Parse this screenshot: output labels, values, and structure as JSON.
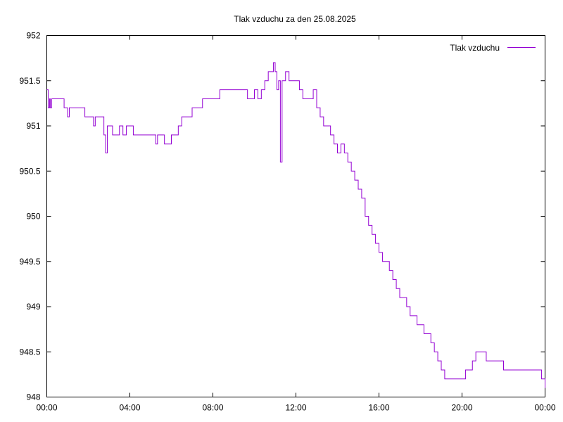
{
  "chart_data": {
    "type": "line",
    "title": "Tlak vzduchu za den 25.08.2025",
    "xlabel": "",
    "ylabel": "",
    "xlim": [
      "00:00",
      "24:00"
    ],
    "ylim": [
      948,
      952
    ],
    "x_ticks": [
      "00:00",
      "04:00",
      "08:00",
      "12:00",
      "16:00",
      "20:00",
      "00:00"
    ],
    "y_ticks": [
      "948",
      "948.5",
      "949",
      "949.5",
      "950",
      "950.5",
      "951",
      "951.5",
      "952"
    ],
    "grid": false,
    "legend_position": "top-right",
    "series": [
      {
        "name": "Tlak vzduchu",
        "color": "#9400d3",
        "x": [
          "00:00",
          "00:04",
          "00:08",
          "00:10",
          "00:14",
          "00:20",
          "00:30",
          "00:40",
          "00:50",
          "01:00",
          "01:05",
          "01:10",
          "01:15",
          "01:20",
          "01:30",
          "01:40",
          "01:50",
          "02:00",
          "02:10",
          "02:15",
          "02:20",
          "02:30",
          "02:40",
          "02:45",
          "02:50",
          "02:55",
          "03:00",
          "03:10",
          "03:20",
          "03:30",
          "03:40",
          "03:50",
          "04:00",
          "04:10",
          "04:20",
          "04:30",
          "04:45",
          "05:00",
          "05:15",
          "05:20",
          "05:30",
          "05:40",
          "05:50",
          "06:00",
          "06:10",
          "06:20",
          "06:30",
          "06:40",
          "06:50",
          "07:00",
          "07:10",
          "07:20",
          "07:30",
          "07:40",
          "07:50",
          "08:00",
          "08:20",
          "08:40",
          "09:00",
          "09:20",
          "09:40",
          "10:00",
          "10:10",
          "10:20",
          "10:30",
          "10:35",
          "10:40",
          "10:45",
          "10:50",
          "10:55",
          "11:00",
          "11:05",
          "11:10",
          "11:15",
          "11:20",
          "11:30",
          "11:40",
          "11:50",
          "12:00",
          "12:10",
          "12:20",
          "12:30",
          "12:40",
          "12:50",
          "13:00",
          "13:10",
          "13:20",
          "13:30",
          "13:40",
          "13:50",
          "14:00",
          "14:10",
          "14:20",
          "14:30",
          "14:40",
          "14:50",
          "15:00",
          "15:10",
          "15:20",
          "15:30",
          "15:40",
          "15:50",
          "16:00",
          "16:10",
          "16:20",
          "16:30",
          "16:40",
          "16:50",
          "17:00",
          "17:10",
          "17:20",
          "17:30",
          "17:40",
          "17:50",
          "18:00",
          "18:10",
          "18:20",
          "18:30",
          "18:40",
          "18:50",
          "19:00",
          "19:10",
          "19:20",
          "19:30",
          "19:40",
          "19:50",
          "20:00",
          "20:10",
          "20:20",
          "20:30",
          "20:40",
          "20:50",
          "21:00",
          "21:10",
          "21:20",
          "21:30",
          "21:40",
          "21:50",
          "22:00",
          "22:10",
          "22:20",
          "22:30",
          "22:40",
          "22:50",
          "23:00",
          "23:10",
          "23:20",
          "23:30",
          "23:40",
          "23:50",
          "24:00"
        ],
        "values": [
          951.4,
          951.2,
          951.3,
          951.2,
          951.3,
          951.3,
          951.3,
          951.3,
          951.2,
          951.1,
          951.2,
          951.2,
          951.2,
          951.2,
          951.2,
          951.2,
          951.1,
          951.1,
          951.1,
          951.0,
          951.1,
          951.1,
          951.1,
          950.9,
          950.7,
          951.0,
          951.0,
          950.9,
          950.9,
          951.0,
          950.9,
          951.0,
          951.0,
          950.9,
          950.9,
          950.9,
          950.9,
          950.9,
          950.8,
          950.9,
          950.9,
          950.8,
          950.8,
          950.9,
          950.9,
          951.0,
          951.1,
          951.1,
          951.1,
          951.2,
          951.2,
          951.2,
          951.3,
          951.3,
          951.3,
          951.3,
          951.4,
          951.4,
          951.4,
          951.4,
          951.3,
          951.4,
          951.3,
          951.4,
          951.5,
          951.5,
          951.6,
          951.6,
          951.6,
          951.7,
          951.6,
          951.4,
          951.5,
          950.6,
          951.5,
          951.6,
          951.5,
          951.5,
          951.5,
          951.4,
          951.3,
          951.3,
          951.3,
          951.4,
          951.2,
          951.1,
          951.0,
          951.0,
          950.9,
          950.8,
          950.7,
          950.8,
          950.7,
          950.6,
          950.5,
          950.4,
          950.3,
          950.2,
          950.0,
          949.9,
          949.8,
          949.7,
          949.6,
          949.5,
          949.5,
          949.4,
          949.3,
          949.2,
          949.1,
          949.1,
          949.0,
          948.9,
          948.9,
          948.8,
          948.8,
          948.7,
          948.7,
          948.6,
          948.5,
          948.4,
          948.3,
          948.2,
          948.2,
          948.2,
          948.2,
          948.2,
          948.2,
          948.3,
          948.3,
          948.4,
          948.5,
          948.5,
          948.5,
          948.4,
          948.4,
          948.4,
          948.4,
          948.4,
          948.3,
          948.3,
          948.3,
          948.3,
          948.3,
          948.3,
          948.3,
          948.3,
          948.3,
          948.3,
          948.3,
          948.2,
          948.1
        ]
      }
    ]
  }
}
